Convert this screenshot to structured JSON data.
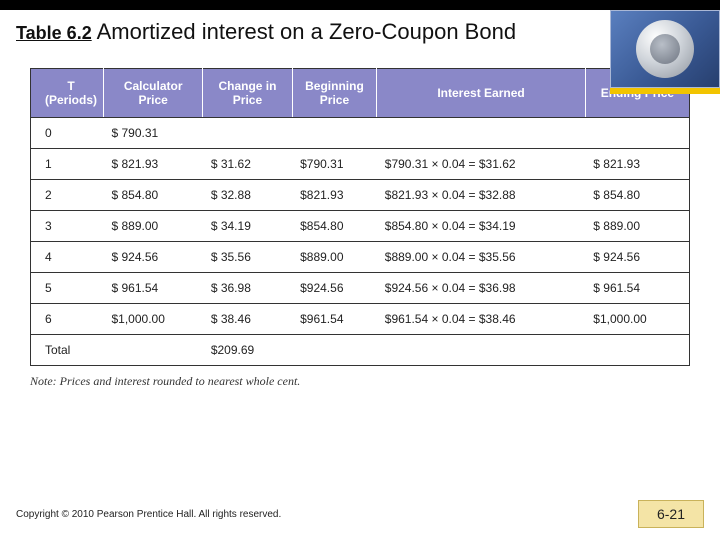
{
  "title": {
    "table_label": "Table 6.2",
    "text": "Amortized interest on a Zero-Coupon Bond"
  },
  "table": {
    "header_bg": "#8a88c8",
    "header_fg": "#ffffff",
    "columns": [
      "T (Periods)",
      "Calculator Price",
      "Change in Price",
      "Beginning Price",
      "Interest Earned",
      "Ending Price"
    ],
    "rows": [
      {
        "t": "0",
        "calc": "$   790.31",
        "chg": "",
        "beg": "",
        "int": "",
        "end": ""
      },
      {
        "t": "1",
        "calc": "$   821.93",
        "chg": "$  31.62",
        "beg": "$790.31",
        "int": "$790.31 × 0.04 = $31.62",
        "end": "$   821.93"
      },
      {
        "t": "2",
        "calc": "$   854.80",
        "chg": "$  32.88",
        "beg": "$821.93",
        "int": "$821.93 × 0.04 = $32.88",
        "end": "$   854.80"
      },
      {
        "t": "3",
        "calc": "$   889.00",
        "chg": "$  34.19",
        "beg": "$854.80",
        "int": "$854.80 × 0.04 = $34.19",
        "end": "$   889.00"
      },
      {
        "t": "4",
        "calc": "$   924.56",
        "chg": "$  35.56",
        "beg": "$889.00",
        "int": "$889.00 × 0.04 = $35.56",
        "end": "$   924.56"
      },
      {
        "t": "5",
        "calc": "$   961.54",
        "chg": "$  36.98",
        "beg": "$924.56",
        "int": "$924.56 × 0.04 = $36.98",
        "end": "$   961.54"
      },
      {
        "t": "6",
        "calc": "$1,000.00",
        "chg": "$  38.46",
        "beg": "$961.54",
        "int": "$961.54 × 0.04 = $38.46",
        "end": "$1,000.00"
      },
      {
        "t": "Total",
        "calc": "",
        "chg": "$209.69",
        "beg": "",
        "int": "",
        "end": ""
      }
    ]
  },
  "note": {
    "label": "Note:",
    "text": "Prices and interest rounded to nearest whole cent."
  },
  "footer": {
    "copyright": "Copyright © 2010 Pearson Prentice Hall. All rights reserved.",
    "page": "6-21"
  },
  "colors": {
    "yellow_stripe": "#f2c400",
    "page_badge_bg": "#f4e4a6",
    "page_badge_border": "#c9b25a"
  }
}
